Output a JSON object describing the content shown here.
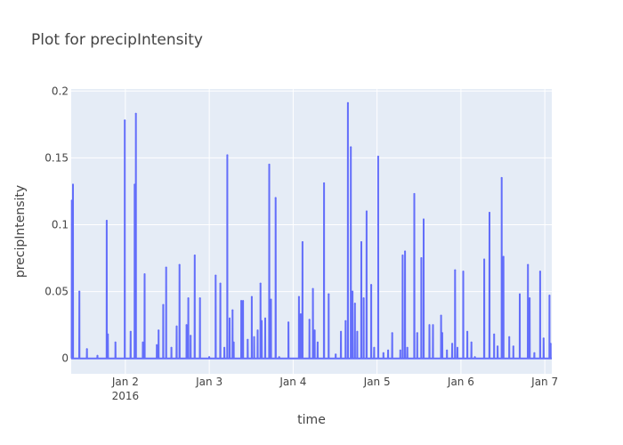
{
  "chart_data": {
    "type": "line",
    "title": "Plot for precipIntensity",
    "xlabel": "time",
    "ylabel": "precipIntensity",
    "xlim": [
      "2016-01-01T08:30",
      "2016-01-07T02:00"
    ],
    "ylim": [
      -0.0115,
      0.2015
    ],
    "y_ticks": [
      {
        "value": 0,
        "label": "0"
      },
      {
        "value": 0.05,
        "label": "0.05"
      },
      {
        "value": 0.1,
        "label": "0.1"
      },
      {
        "value": 0.15,
        "label": "0.15"
      },
      {
        "value": 0.2,
        "label": "0.2"
      }
    ],
    "x_ticks": [
      {
        "value": "2016-01-02",
        "label": "Jan 2",
        "sublabel": "2016"
      },
      {
        "value": "2016-01-03",
        "label": "Jan 3",
        "sublabel": ""
      },
      {
        "value": "2016-01-04",
        "label": "Jan 4",
        "sublabel": ""
      },
      {
        "value": "2016-01-05",
        "label": "Jan 5",
        "sublabel": ""
      },
      {
        "value": "2016-01-06",
        "label": "Jan 6",
        "sublabel": ""
      },
      {
        "value": "2016-01-07",
        "label": "Jan 7",
        "sublabel": ""
      }
    ],
    "grid": true,
    "legend": "none",
    "colors": {
      "line": "#636efa",
      "plot_bg": "#e5ecf6",
      "grid": "#ffffff"
    },
    "series": [
      {
        "peaks": [
          [
            "2016-01-01T08:40",
            0.118
          ],
          [
            "2016-01-01T09:00",
            0.13
          ],
          [
            "2016-01-01T10:50",
            0.05
          ],
          [
            "2016-01-01T13:00",
            0.007
          ],
          [
            "2016-01-01T16:00",
            0.002
          ],
          [
            "2016-01-01T18:40",
            0.103
          ],
          [
            "2016-01-01T19:00",
            0.018
          ],
          [
            "2016-01-01T21:10",
            0.012
          ],
          [
            "2016-01-01T23:50",
            0.178
          ],
          [
            "2016-01-02T01:30",
            0.02
          ],
          [
            "2016-01-02T02:40",
            0.13
          ],
          [
            "2016-01-02T03:00",
            0.183
          ],
          [
            "2016-01-02T05:00",
            0.012
          ],
          [
            "2016-01-02T05:30",
            0.063
          ],
          [
            "2016-01-02T09:00",
            0.01
          ],
          [
            "2016-01-02T09:30",
            0.021
          ],
          [
            "2016-01-02T10:50",
            0.04
          ],
          [
            "2016-01-02T11:40",
            0.068
          ],
          [
            "2016-01-02T13:10",
            0.008
          ],
          [
            "2016-01-02T14:40",
            0.024
          ],
          [
            "2016-01-02T15:30",
            0.07
          ],
          [
            "2016-01-02T17:30",
            0.025
          ],
          [
            "2016-01-02T18:00",
            0.045
          ],
          [
            "2016-01-02T18:40",
            0.017
          ],
          [
            "2016-01-02T19:50",
            0.077
          ],
          [
            "2016-01-02T21:20",
            0.045
          ],
          [
            "2016-01-03T00:00",
            0.001
          ],
          [
            "2016-01-03T01:50",
            0.062
          ],
          [
            "2016-01-03T03:10",
            0.056
          ],
          [
            "2016-01-03T04:20",
            0.008
          ],
          [
            "2016-01-03T05:10",
            0.152
          ],
          [
            "2016-01-03T05:50",
            0.03
          ],
          [
            "2016-01-03T06:40",
            0.036
          ],
          [
            "2016-01-03T07:00",
            0.012
          ],
          [
            "2016-01-03T09:10",
            0.043
          ],
          [
            "2016-01-03T09:40",
            0.043
          ],
          [
            "2016-01-03T11:00",
            0.014
          ],
          [
            "2016-01-03T12:10",
            0.046
          ],
          [
            "2016-01-03T12:50",
            0.016
          ],
          [
            "2016-01-03T13:50",
            0.021
          ],
          [
            "2016-01-03T14:40",
            0.056
          ],
          [
            "2016-01-03T15:00",
            0.028
          ],
          [
            "2016-01-03T16:00",
            0.03
          ],
          [
            "2016-01-03T17:10",
            0.145
          ],
          [
            "2016-01-03T17:40",
            0.044
          ],
          [
            "2016-01-03T19:00",
            0.12
          ],
          [
            "2016-01-03T20:00",
            0.001
          ],
          [
            "2016-01-03T22:40",
            0.027
          ],
          [
            "2016-01-04T01:40",
            0.046
          ],
          [
            "2016-01-04T02:10",
            0.033
          ],
          [
            "2016-01-04T02:40",
            0.087
          ],
          [
            "2016-01-04T04:40",
            0.029
          ],
          [
            "2016-01-04T05:40",
            0.052
          ],
          [
            "2016-01-04T06:10",
            0.021
          ],
          [
            "2016-01-04T07:00",
            0.012
          ],
          [
            "2016-01-04T08:50",
            0.131
          ],
          [
            "2016-01-04T10:10",
            0.048
          ],
          [
            "2016-01-04T12:10",
            0.003
          ],
          [
            "2016-01-04T13:40",
            0.02
          ],
          [
            "2016-01-04T15:00",
            0.028
          ],
          [
            "2016-01-04T15:40",
            0.191
          ],
          [
            "2016-01-04T16:30",
            0.158
          ],
          [
            "2016-01-04T17:00",
            0.05
          ],
          [
            "2016-01-04T17:40",
            0.041
          ],
          [
            "2016-01-04T18:20",
            0.02
          ],
          [
            "2016-01-04T19:30",
            0.087
          ],
          [
            "2016-01-04T20:10",
            0.045
          ],
          [
            "2016-01-04T21:00",
            0.11
          ],
          [
            "2016-01-04T22:20",
            0.055
          ],
          [
            "2016-01-04T23:10",
            0.008
          ],
          [
            "2016-01-05T00:20",
            0.151
          ],
          [
            "2016-01-05T01:50",
            0.004
          ],
          [
            "2016-01-05T03:10",
            0.006
          ],
          [
            "2016-01-05T04:20",
            0.019
          ],
          [
            "2016-01-05T06:40",
            0.006
          ],
          [
            "2016-01-05T07:20",
            0.077
          ],
          [
            "2016-01-05T08:00",
            0.08
          ],
          [
            "2016-01-05T08:40",
            0.008
          ],
          [
            "2016-01-05T10:40",
            0.123
          ],
          [
            "2016-01-05T11:30",
            0.019
          ],
          [
            "2016-01-05T12:40",
            0.075
          ],
          [
            "2016-01-05T13:20",
            0.104
          ],
          [
            "2016-01-05T15:00",
            0.025
          ],
          [
            "2016-01-05T16:00",
            0.025
          ],
          [
            "2016-01-05T18:20",
            0.032
          ],
          [
            "2016-01-05T18:40",
            0.019
          ],
          [
            "2016-01-05T20:00",
            0.006
          ],
          [
            "2016-01-05T21:30",
            0.011
          ],
          [
            "2016-01-05T22:20",
            0.066
          ],
          [
            "2016-01-05T23:00",
            0.008
          ],
          [
            "2016-01-06T00:40",
            0.065
          ],
          [
            "2016-01-06T01:50",
            0.02
          ],
          [
            "2016-01-06T03:00",
            0.012
          ],
          [
            "2016-01-06T04:00",
            0.001
          ],
          [
            "2016-01-06T06:40",
            0.074
          ],
          [
            "2016-01-06T08:10",
            0.109
          ],
          [
            "2016-01-06T09:30",
            0.018
          ],
          [
            "2016-01-06T10:30",
            0.009
          ],
          [
            "2016-01-06T11:40",
            0.135
          ],
          [
            "2016-01-06T12:10",
            0.076
          ],
          [
            "2016-01-06T13:50",
            0.016
          ],
          [
            "2016-01-06T15:00",
            0.009
          ],
          [
            "2016-01-06T16:50",
            0.048
          ],
          [
            "2016-01-06T19:10",
            0.07
          ],
          [
            "2016-01-06T19:40",
            0.045
          ],
          [
            "2016-01-06T21:00",
            0.004
          ],
          [
            "2016-01-06T22:40",
            0.065
          ],
          [
            "2016-01-06T23:40",
            0.015
          ],
          [
            "2016-01-07T01:20",
            0.047
          ],
          [
            "2016-01-07T01:40",
            0.011
          ]
        ]
      }
    ]
  }
}
